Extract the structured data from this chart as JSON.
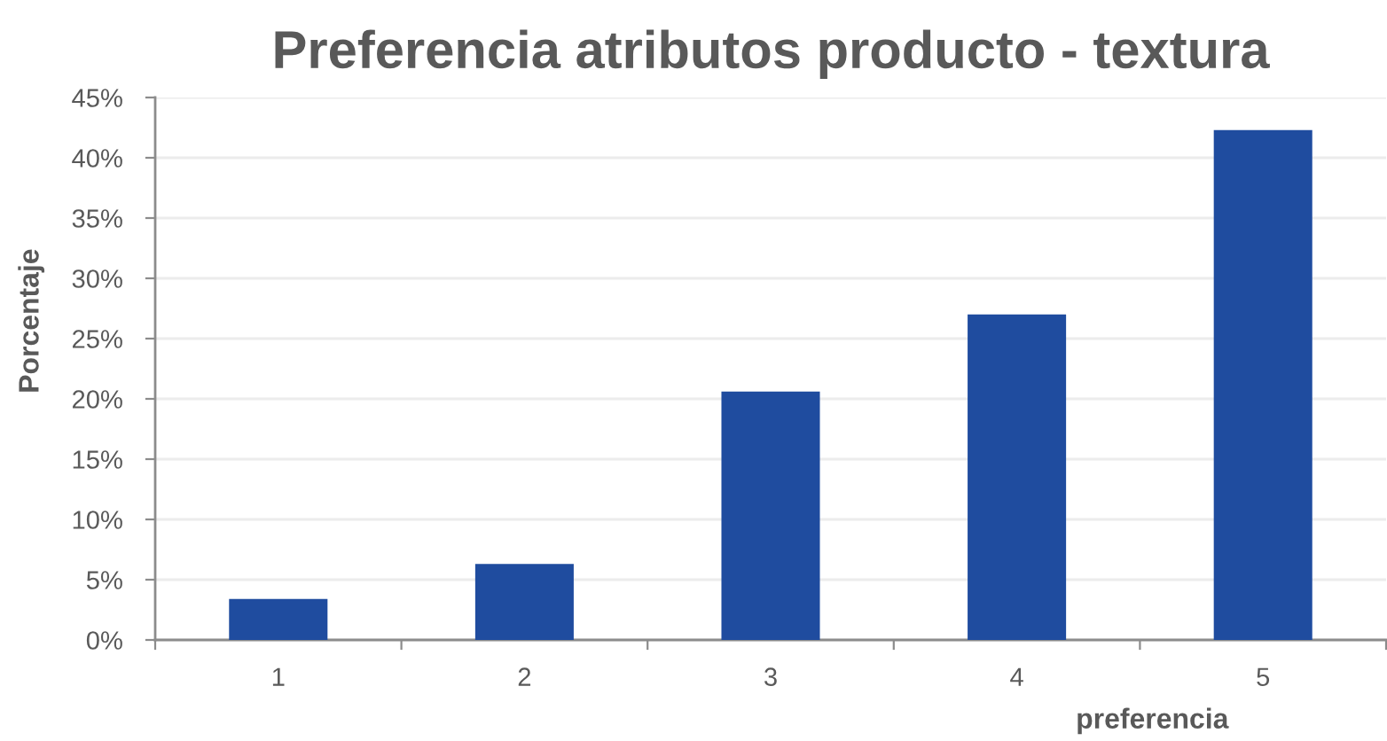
{
  "chart_data": {
    "type": "bar",
    "title": "Preferencia atributos producto - textura",
    "xlabel": "preferencia",
    "ylabel": "Porcentaje",
    "categories": [
      "1",
      "2",
      "3",
      "4",
      "5"
    ],
    "values": [
      3.4,
      6.3,
      20.6,
      27.0,
      42.3
    ],
    "color": "#1f4c9f",
    "ylim": [
      0,
      45
    ],
    "yticks": [
      {
        "value": 0,
        "label": "0%"
      },
      {
        "value": 5,
        "label": "5%"
      },
      {
        "value": 10,
        "label": "10%"
      },
      {
        "value": 15,
        "label": "15%"
      },
      {
        "value": 20,
        "label": "20%"
      },
      {
        "value": 25,
        "label": "25%"
      },
      {
        "value": 30,
        "label": "30%"
      },
      {
        "value": 35,
        "label": "35%"
      },
      {
        "value": 40,
        "label": "40%"
      },
      {
        "value": 45,
        "label": "45%"
      }
    ],
    "grid": "y"
  }
}
